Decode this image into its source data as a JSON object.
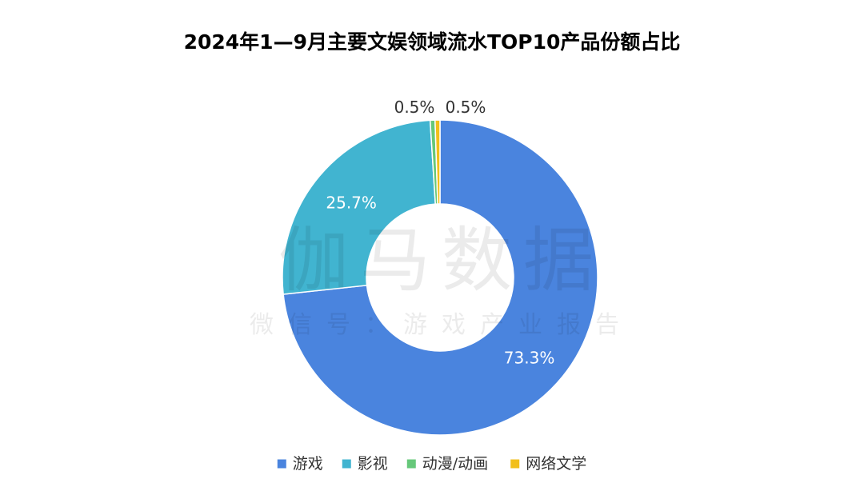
{
  "watermark": {
    "main": "伽马数据",
    "sub": "微信号：游戏产业报告"
  },
  "chart_data": {
    "type": "pie",
    "variant": "donut",
    "title": "2024年1—9月主要文娱领域流水TOP10产品份额占比",
    "unit": "%",
    "legend_position": "bottom",
    "slices": [
      {
        "label": "游戏",
        "value": 73.3,
        "display": "73.3%",
        "color": "#4a84de",
        "label_color": "#ffffff"
      },
      {
        "label": "影视",
        "value": 25.7,
        "display": "25.7%",
        "color": "#41b4d0",
        "label_color": "#ffffff"
      },
      {
        "label": "动漫/动画",
        "value": 0.5,
        "display": "0.5%",
        "color": "#66c87a",
        "label_color": "#333333"
      },
      {
        "label": "网络文学",
        "value": 0.5,
        "display": "0.5%",
        "color": "#f2bf1b",
        "label_color": "#333333"
      }
    ]
  }
}
